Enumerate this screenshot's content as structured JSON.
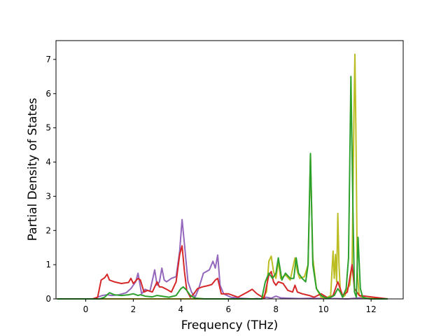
{
  "chart_data": {
    "type": "line",
    "xlabel": "Frequency (THz)",
    "ylabel": "Partial Density of States",
    "xlim": [
      -1.25,
      13.35
    ],
    "ylim": [
      0,
      7.55
    ],
    "xticks": [
      0,
      2,
      4,
      6,
      8,
      10,
      12
    ],
    "yticks": [
      0,
      1,
      2,
      3,
      4,
      5,
      6,
      7
    ],
    "grid": false,
    "series": [
      {
        "color": "#9467bd",
        "x": [
          -1.2,
          0.3,
          0.5,
          0.7,
          0.9,
          1.1,
          1.4,
          1.7,
          1.9,
          2.1,
          2.2,
          2.35,
          2.5,
          2.7,
          2.9,
          3.0,
          3.1,
          3.2,
          3.3,
          3.4,
          3.6,
          3.8,
          3.95,
          4.05,
          4.15,
          4.3,
          4.45,
          4.6,
          4.75,
          4.95,
          5.2,
          5.35,
          5.45,
          5.55,
          5.65,
          5.8,
          6.1,
          6.5,
          7.0,
          7.2,
          7.4,
          7.6,
          7.8,
          8.0,
          8.2,
          8.5,
          9.0,
          9.5,
          10.0,
          10.5,
          11.0,
          11.5,
          12.0,
          12.7
        ],
        "values": [
          0,
          0,
          0.05,
          0.1,
          0.12,
          0.1,
          0.12,
          0.18,
          0.3,
          0.5,
          0.75,
          0.15,
          0.28,
          0.22,
          0.85,
          0.4,
          0.5,
          0.9,
          0.55,
          0.5,
          0.6,
          0.65,
          1.4,
          2.32,
          1.6,
          0.5,
          0.2,
          0.05,
          0.3,
          0.75,
          0.85,
          1.1,
          0.9,
          1.28,
          0.4,
          0.15,
          0.05,
          0.02,
          0,
          0.01,
          0,
          0.05,
          0.02,
          0.08,
          0.03,
          0.02,
          0.01,
          0.02,
          0.01,
          0.01,
          0,
          0.03,
          0,
          0
        ]
      },
      {
        "color": "#bcbd22",
        "x": [
          -1.2,
          7.4,
          7.6,
          7.7,
          7.8,
          7.9,
          8.0,
          8.1,
          8.2,
          8.4,
          8.6,
          8.8,
          8.9,
          9.0,
          9.2,
          9.35,
          9.45,
          9.55,
          9.7,
          9.9,
          10.1,
          10.3,
          10.4,
          10.45,
          10.5,
          10.55,
          10.6,
          10.65,
          10.7,
          10.8,
          10.9,
          11.0,
          11.1,
          11.2,
          11.28,
          11.32,
          11.36,
          11.42,
          11.5,
          11.7,
          12.7
        ],
        "values": [
          0,
          0,
          0.2,
          1.1,
          1.25,
          0.8,
          0.6,
          1.1,
          0.6,
          0.7,
          0.55,
          1.2,
          0.8,
          0.6,
          0.65,
          1.0,
          4.2,
          1.2,
          0.3,
          0.05,
          0.02,
          0.1,
          1.4,
          0.6,
          1.3,
          0.5,
          2.5,
          1.0,
          0.3,
          0.05,
          0.1,
          0.3,
          0.4,
          1.0,
          5.5,
          7.15,
          5.0,
          0.8,
          0.1,
          0.02,
          0
        ]
      },
      {
        "color": "#d62728",
        "x": [
          -1.2,
          0.3,
          0.5,
          0.65,
          0.8,
          0.9,
          1.0,
          1.2,
          1.5,
          1.8,
          1.9,
          2.0,
          2.2,
          2.3,
          2.45,
          2.6,
          2.8,
          3.0,
          3.1,
          3.2,
          3.4,
          3.6,
          3.8,
          3.95,
          4.05,
          4.15,
          4.25,
          4.4,
          4.55,
          4.7,
          4.9,
          5.1,
          5.3,
          5.45,
          5.55,
          5.7,
          6.0,
          6.4,
          6.8,
          7.0,
          7.2,
          7.5,
          7.7,
          7.8,
          7.9,
          8.0,
          8.1,
          8.3,
          8.5,
          8.7,
          8.8,
          8.9,
          9.1,
          9.4,
          9.6,
          9.9,
          10.2,
          10.4,
          10.5,
          10.6,
          10.8,
          11.0,
          11.1,
          11.2,
          11.3,
          11.5,
          12.7
        ],
        "values": [
          0,
          0,
          0.05,
          0.55,
          0.62,
          0.72,
          0.55,
          0.5,
          0.45,
          0.48,
          0.6,
          0.45,
          0.6,
          0.55,
          0.2,
          0.25,
          0.2,
          0.5,
          0.35,
          0.35,
          0.28,
          0.2,
          0.5,
          1.3,
          1.55,
          0.8,
          0.25,
          0.05,
          0.15,
          0.3,
          0.35,
          0.38,
          0.42,
          0.55,
          0.6,
          0.15,
          0.15,
          0.05,
          0.2,
          0.28,
          0.15,
          0.02,
          0.7,
          0.8,
          0.5,
          0.4,
          0.5,
          0.45,
          0.25,
          0.2,
          0.4,
          0.2,
          0.15,
          0.1,
          0.05,
          0.15,
          0.02,
          0.1,
          0.3,
          0.5,
          0.1,
          0.2,
          0.6,
          1.0,
          0.3,
          0.1,
          0
        ]
      },
      {
        "color": "#2ca02c",
        "x": [
          -1.2,
          0.6,
          0.8,
          0.9,
          1.0,
          1.2,
          1.5,
          1.8,
          2.0,
          2.2,
          2.3,
          2.5,
          2.8,
          3.0,
          3.2,
          3.5,
          3.8,
          4.0,
          4.1,
          4.25,
          4.4,
          4.6,
          5.0,
          5.5,
          6.0,
          7.4,
          7.55,
          7.7,
          7.85,
          8.0,
          8.1,
          8.25,
          8.4,
          8.6,
          8.75,
          8.85,
          8.95,
          9.1,
          9.25,
          9.35,
          9.45,
          9.55,
          9.7,
          9.9,
          10.1,
          10.3,
          10.45,
          10.6,
          10.7,
          10.8,
          10.95,
          11.05,
          11.15,
          11.25,
          11.3,
          11.38,
          11.45,
          11.55,
          11.65,
          11.8,
          12.0,
          12.7
        ],
        "values": [
          0,
          0,
          0.05,
          0.12,
          0.18,
          0.12,
          0.1,
          0.12,
          0.15,
          0.1,
          0.12,
          0.08,
          0.06,
          0.1,
          0.08,
          0.05,
          0.1,
          0.3,
          0.35,
          0.25,
          0.1,
          0.02,
          0,
          0,
          0,
          0,
          0.5,
          0.75,
          0.6,
          0.75,
          1.2,
          0.55,
          0.75,
          0.6,
          0.6,
          1.2,
          0.75,
          0.6,
          0.5,
          1.0,
          4.25,
          1.0,
          0.3,
          0.1,
          0.02,
          0.05,
          0.1,
          0.3,
          0.2,
          0.05,
          0.3,
          1.2,
          6.5,
          2.0,
          0.2,
          0.05,
          1.8,
          0.3,
          0.05,
          0.02,
          0,
          0
        ]
      }
    ]
  }
}
